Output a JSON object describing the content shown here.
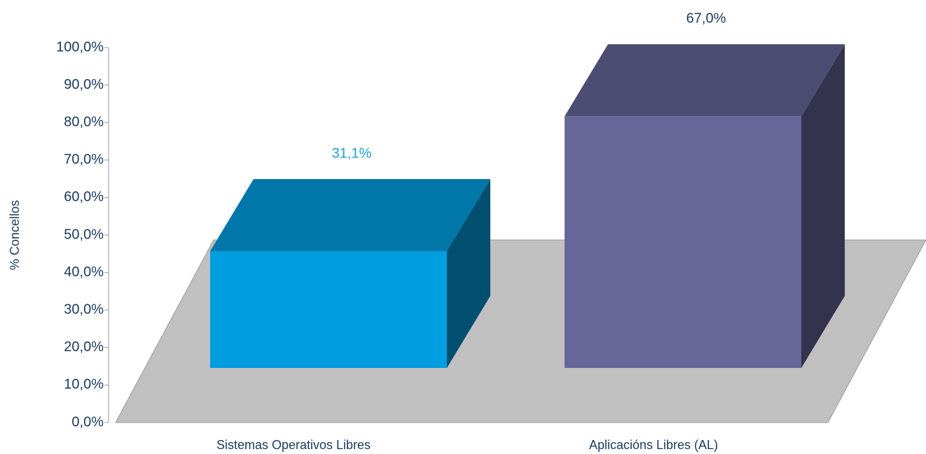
{
  "chart_data": {
    "type": "bar3d",
    "y_label": "% Concellos",
    "categories": [
      "Sistemas Operativos Libres",
      "Aplicacións Libres (AL)"
    ],
    "values": [
      31.1,
      67.0
    ],
    "value_labels": [
      "31,1%",
      "67,0%"
    ],
    "colors": [
      "#009ee0",
      "#666699"
    ],
    "label_colors": [
      "#1ea0dc",
      "#1a3a5c"
    ],
    "ylim": [
      0,
      100
    ],
    "yticks": [
      {
        "value": 0,
        "label": "0,0%"
      },
      {
        "value": 10,
        "label": "10,0%"
      },
      {
        "value": 20,
        "label": "20,0%"
      },
      {
        "value": 30,
        "label": "30,0%"
      },
      {
        "value": 40,
        "label": "40,0%"
      },
      {
        "value": 50,
        "label": "50,0%"
      },
      {
        "value": 60,
        "label": "60,0%"
      },
      {
        "value": 70,
        "label": "70,0%"
      },
      {
        "value": 80,
        "label": "80,0%"
      },
      {
        "value": 90,
        "label": "90,0%"
      },
      {
        "value": 100,
        "label": "100,0%"
      }
    ]
  }
}
